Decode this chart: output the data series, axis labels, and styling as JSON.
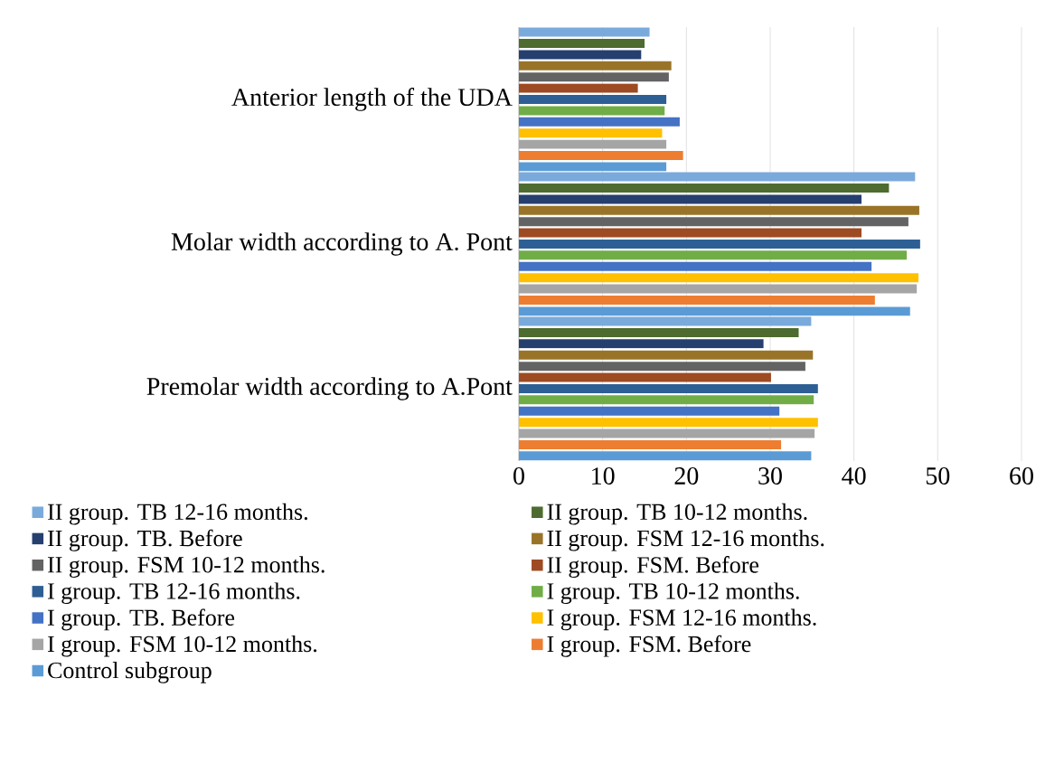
{
  "chart_data": {
    "type": "bar",
    "orientation": "horizontal",
    "categories": [
      "Anterior length of the UDA",
      "Molar width according to A. Pont",
      "Premolar width according to A.Pont"
    ],
    "series": [
      {
        "name": "II group. TB 12-16 months.",
        "color": "#7aaadc",
        "values": [
          15.6,
          47.3,
          34.9
        ]
      },
      {
        "name": "II group. TB 10-12 months.",
        "color": "#4e6b30",
        "values": [
          15.0,
          44.2,
          33.4
        ]
      },
      {
        "name": "II group. TB. Before",
        "color": "#253f6e",
        "values": [
          14.6,
          40.9,
          29.2
        ]
      },
      {
        "name": "II group. FSM 12-16 months.",
        "color": "#997428",
        "values": [
          18.2,
          47.8,
          35.1
        ]
      },
      {
        "name": "II group. FSM 10-12 months.",
        "color": "#636363",
        "values": [
          17.9,
          46.5,
          34.2
        ]
      },
      {
        "name": "II group. FSM. Before",
        "color": "#9e4a23",
        "values": [
          14.2,
          40.9,
          30.1
        ]
      },
      {
        "name": "I group. TB 12-16 months.",
        "color": "#2e5f94",
        "values": [
          17.6,
          47.9,
          35.7
        ]
      },
      {
        "name": "I group. TB 10-12 months.",
        "color": "#70ad47",
        "values": [
          17.4,
          46.3,
          35.2
        ]
      },
      {
        "name": "I group. TB. Before",
        "color": "#4472c4",
        "values": [
          19.2,
          42.1,
          31.1
        ]
      },
      {
        "name": "I group. FSM 12-16 months.",
        "color": "#ffc000",
        "values": [
          17.1,
          47.7,
          35.7
        ]
      },
      {
        "name": "I group. FSM 10-12 months.",
        "color": "#a5a5a5",
        "values": [
          17.6,
          47.5,
          35.3
        ]
      },
      {
        "name": "I group. FSM. Before",
        "color": "#ed7d31",
        "values": [
          19.6,
          42.5,
          31.3
        ]
      },
      {
        "name": "Control subgroup",
        "color": "#5b9bd5",
        "values": [
          17.6,
          46.7,
          34.9
        ]
      }
    ],
    "xlim": [
      0,
      60
    ],
    "xticks": [
      0,
      10,
      20,
      30,
      40,
      50,
      60
    ],
    "grid": "x",
    "legend": "bottom"
  }
}
